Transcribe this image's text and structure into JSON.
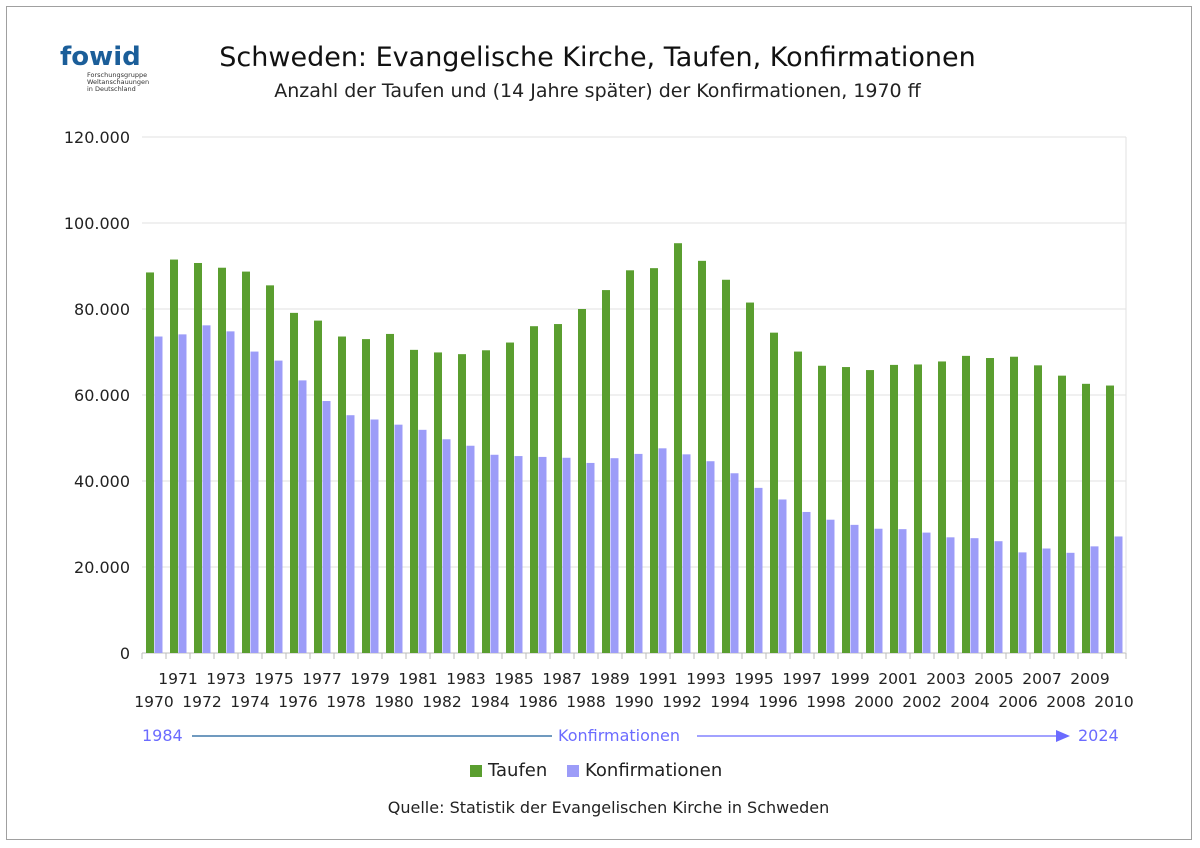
{
  "logo": {
    "word": "fowid",
    "lines": [
      "Forschungsgruppe",
      "Weltanschauungen",
      "in Deutschland"
    ]
  },
  "chart_data": {
    "type": "bar",
    "title": "Schweden: Evangelische Kirche, Taufen, Konfirmationen",
    "subtitle": "Anzahl der Taufen und (14 Jahre später) der Konfirmationen, 1970 ff",
    "categories": [
      "1970",
      "1971",
      "1972",
      "1973",
      "1974",
      "1975",
      "1976",
      "1977",
      "1978",
      "1979",
      "1980",
      "1981",
      "1982",
      "1983",
      "1984",
      "1985",
      "1986",
      "1987",
      "1988",
      "1989",
      "1990",
      "1991",
      "1992",
      "1993",
      "1994",
      "1995",
      "1996",
      "1997",
      "1998",
      "1999",
      "2000",
      "2001",
      "2002",
      "2003",
      "2004",
      "2005",
      "2006",
      "2007",
      "2008",
      "2009",
      "2010"
    ],
    "series": [
      {
        "name": "Taufen",
        "color": "#5a9e2f",
        "values": [
          88500,
          91500,
          90700,
          89600,
          88700,
          85500,
          79100,
          77300,
          73600,
          73000,
          74200,
          70500,
          69900,
          69500,
          70400,
          72200,
          76000,
          76500,
          80000,
          84400,
          89000,
          89500,
          95300,
          91200,
          86800,
          81500,
          74500,
          70100,
          66800,
          66500,
          65800,
          67000,
          67100,
          67800,
          69100,
          68600,
          68900,
          66900,
          64500,
          62600,
          62200
        ]
      },
      {
        "name": "Konfirmationen",
        "color": "#9c9cf8",
        "values": [
          73600,
          74100,
          76200,
          74800,
          70100,
          68000,
          63400,
          58600,
          55300,
          54300,
          53100,
          51900,
          49700,
          48200,
          46100,
          45800,
          45600,
          45400,
          44200,
          45300,
          46300,
          47600,
          46200,
          44600,
          41800,
          38400,
          35700,
          32800,
          31000,
          29800,
          28900,
          28800,
          28000,
          26900,
          26700,
          26000,
          23400,
          24300,
          23300,
          24800,
          27100
        ]
      }
    ],
    "ylim": [
      0,
      120000
    ],
    "yticks": [
      "0",
      "20.000",
      "40.000",
      "60.000",
      "80.000",
      "100.000",
      "120.000"
    ],
    "grid": true,
    "legend": "bottom"
  },
  "timeline": {
    "start": "1984",
    "label": "Konfirmationen",
    "end": "2024"
  },
  "source": "Quelle: Statistik der Evangelischen Kirche in Schweden",
  "colors": {
    "taufen": "#5a9e2f",
    "konfirmationen": "#9c9cf8",
    "accent": "#6b6bff"
  }
}
